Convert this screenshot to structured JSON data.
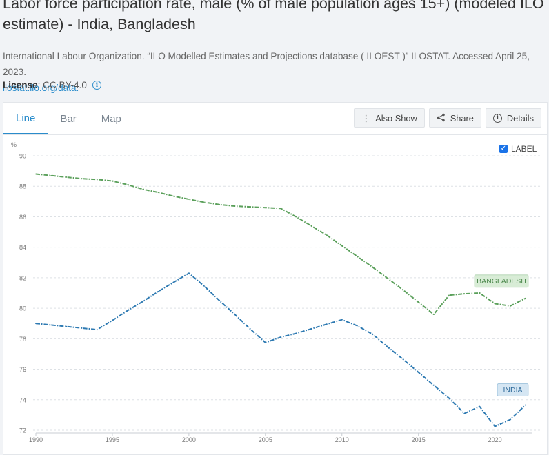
{
  "header": {
    "title": "Labor force participation rate, male (% of male population ages 15+) (modeled ILO estimate) - India, Bangladesh",
    "source_text": "International Labour Organization. “ILO Modelled Estimates and Projections database ( ILOEST )” ILOSTAT. Accessed April 25, 2023.",
    "source_link": "ilostat.ilo.org/data.",
    "license_label": "License",
    "license_value": " : CC BY-4.0"
  },
  "tabs": [
    {
      "label": "Line",
      "active": true
    },
    {
      "label": "Bar",
      "active": false
    },
    {
      "label": "Map",
      "active": false
    }
  ],
  "toolbar": {
    "also_show_label": "Also Show",
    "share_label": "Share",
    "details_label": "Details",
    "also_show_icon": "vertical-ellipsis-icon",
    "share_icon": "share-icon",
    "details_icon": "info-icon"
  },
  "label_toggle": {
    "label": "LABEL",
    "checked": true
  },
  "chart_data": {
    "type": "line",
    "title": "",
    "xlabel": "",
    "ylabel": "%",
    "xlim": [
      1990,
      2022
    ],
    "ylim": [
      72,
      90
    ],
    "x_ticks": [
      1990,
      1995,
      2000,
      2005,
      2010,
      2015,
      2020
    ],
    "y_ticks": [
      72,
      74,
      76,
      78,
      80,
      82,
      84,
      86,
      88,
      90
    ],
    "grid": true,
    "series": [
      {
        "name": "BANGLADESH",
        "color": "#5ba05b",
        "label_bg": "#d8ecd6",
        "label_text": "#4e8a4e",
        "x": [
          1990,
          1991,
          1992,
          1993,
          1994,
          1995,
          1996,
          1997,
          1998,
          1999,
          2000,
          2001,
          2002,
          2003,
          2004,
          2005,
          2006,
          2007,
          2008,
          2009,
          2010,
          2011,
          2012,
          2013,
          2014,
          2015,
          2016,
          2017,
          2018,
          2019,
          2020,
          2021,
          2022
        ],
        "y": [
          88.8,
          88.7,
          88.6,
          88.5,
          88.45,
          88.35,
          88.1,
          87.8,
          87.6,
          87.35,
          87.15,
          86.95,
          86.8,
          86.7,
          86.65,
          86.6,
          86.55,
          86.0,
          85.4,
          84.8,
          84.1,
          83.4,
          82.7,
          81.95,
          81.2,
          80.4,
          79.6,
          80.85,
          80.95,
          81.0,
          80.3,
          80.15,
          80.65
        ]
      },
      {
        "name": "INDIA",
        "color": "#2e7ab2",
        "label_bg": "#d5e6f3",
        "label_text": "#2e6a9a",
        "x": [
          1990,
          1991,
          1992,
          1993,
          1994,
          1995,
          1996,
          1997,
          1998,
          1999,
          2000,
          2001,
          2002,
          2003,
          2004,
          2005,
          2006,
          2007,
          2008,
          2009,
          2010,
          2011,
          2012,
          2013,
          2014,
          2015,
          2016,
          2017,
          2018,
          2019,
          2020,
          2021,
          2022
        ],
        "y": [
          79.0,
          78.9,
          78.8,
          78.7,
          78.6,
          79.2,
          79.85,
          80.45,
          81.1,
          81.7,
          82.3,
          81.45,
          80.5,
          79.6,
          78.65,
          77.75,
          78.1,
          78.35,
          78.65,
          78.95,
          79.25,
          78.85,
          78.3,
          77.45,
          76.65,
          75.8,
          74.95,
          74.1,
          73.1,
          73.55,
          72.25,
          72.7,
          73.65
        ]
      }
    ]
  }
}
